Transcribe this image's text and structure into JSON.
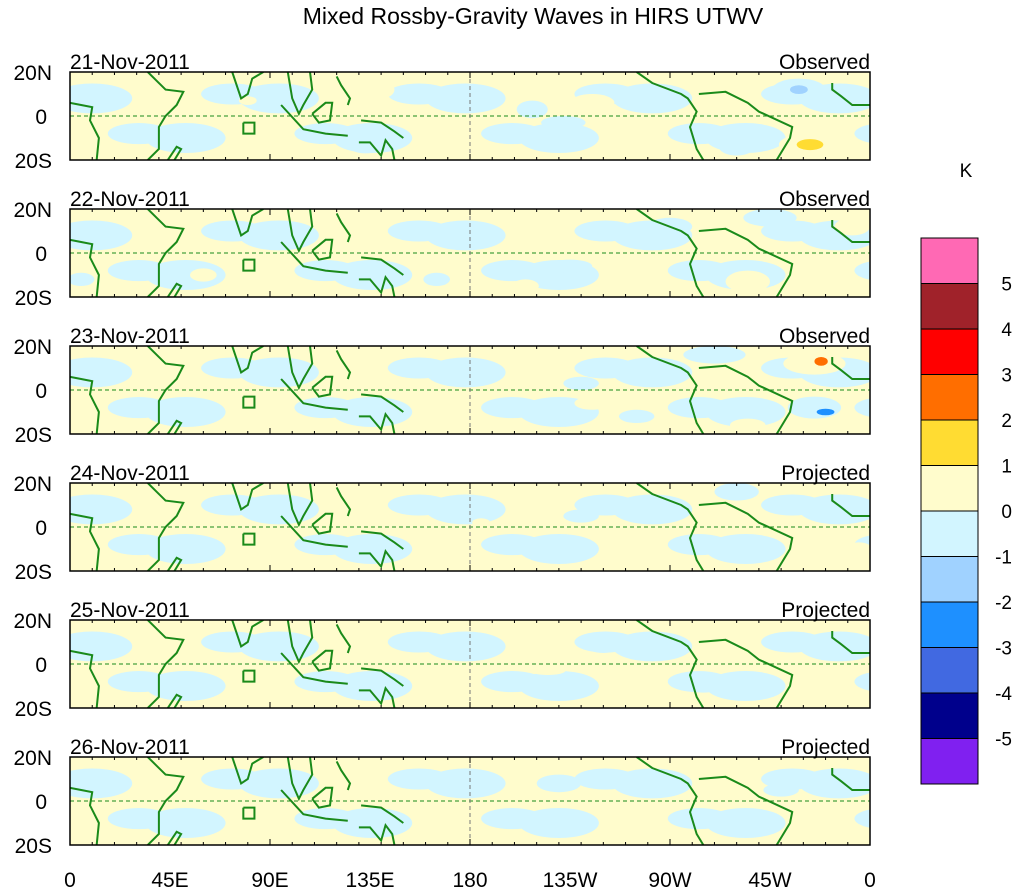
{
  "chart_data": {
    "type": "heatmap",
    "title": "Mixed Rossby-Gravity Waves in HIRS UTWV",
    "units": "K",
    "x_ticks": [
      "0",
      "45E",
      "90E",
      "135E",
      "180",
      "135W",
      "90W",
      "45W",
      "0"
    ],
    "x_tick_lons": [
      0,
      45,
      90,
      135,
      180,
      225,
      270,
      315,
      360
    ],
    "y_ticks": [
      "20N",
      "0",
      "20S"
    ],
    "lat_range": [
      -20,
      20
    ],
    "lon_range": [
      0,
      360
    ],
    "colorbar": {
      "levels": [
        "5",
        "4",
        "3",
        "2",
        "1",
        "0",
        "-1",
        "-2",
        "-3",
        "-4",
        "-5"
      ],
      "colors": [
        "#ff69b4",
        "#a0222a",
        "#ff0000",
        "#ff6e00",
        "#ffdc32",
        "#fffccc",
        "#d2f5ff",
        "#a0d2ff",
        "#1e90ff",
        "#4169e1",
        "#00008c",
        "#8020f0"
      ]
    },
    "panels": [
      {
        "date": "21-Nov-2011",
        "label": "Observed",
        "anomalies": [
          {
            "lon": 140,
            "lat": 12,
            "rlon": 6,
            "rlat": 4,
            "v": 0.5
          },
          {
            "lon": 80,
            "lat": 7,
            "rlon": 4,
            "rlat": 2,
            "v": 0.5
          },
          {
            "lon": 133,
            "lat": -13,
            "rlon": 8,
            "rlat": 4,
            "v": -0.5
          },
          {
            "lon": 208,
            "lat": 3,
            "rlon": 7,
            "rlat": 4,
            "v": -0.5
          },
          {
            "lon": 235,
            "lat": 6,
            "rlon": 10,
            "rlat": 4,
            "v": 0.5
          },
          {
            "lon": 222,
            "lat": -3,
            "rlon": 10,
            "rlat": 3,
            "v": -0.5
          },
          {
            "lon": 250,
            "lat": -16,
            "rlon": 10,
            "rlat": 3,
            "v": 0.5
          },
          {
            "lon": 328,
            "lat": 12,
            "rlon": 12,
            "rlat": 5,
            "v": -0.5
          },
          {
            "lon": 328,
            "lat": 12,
            "rlon": 4,
            "rlat": 2,
            "v": -1.5
          },
          {
            "lon": 333,
            "lat": -13,
            "rlon": 14,
            "rlat": 5,
            "v": 0.5
          },
          {
            "lon": 333,
            "lat": -13,
            "rlon": 6,
            "rlat": 2.5,
            "v": 1.5
          },
          {
            "lon": 300,
            "lat": -14,
            "rlon": 8,
            "rlat": 4,
            "v": -0.5
          }
        ]
      },
      {
        "date": "22-Nov-2011",
        "label": "Observed",
        "anomalies": [
          {
            "lon": 215,
            "lat": 5,
            "rlon": 9,
            "rlat": 3,
            "v": 0.5
          },
          {
            "lon": 225,
            "lat": -6,
            "rlon": 10,
            "rlat": 3,
            "v": -0.5
          },
          {
            "lon": 205,
            "lat": -15,
            "rlon": 6,
            "rlat": 3,
            "v": 0.5
          },
          {
            "lon": 165,
            "lat": -12,
            "rlon": 6,
            "rlat": 3,
            "v": -0.5
          },
          {
            "lon": 270,
            "lat": 12,
            "rlon": 10,
            "rlat": 4,
            "v": -0.5
          },
          {
            "lon": 260,
            "lat": -4,
            "rlon": 6,
            "rlat": 2,
            "v": 0.5
          },
          {
            "lon": 315,
            "lat": 16,
            "rlon": 12,
            "rlat": 4,
            "v": -0.5
          },
          {
            "lon": 305,
            "lat": -13,
            "rlon": 10,
            "rlat": 5,
            "v": 0.5
          },
          {
            "lon": 352,
            "lat": 12,
            "rlon": 8,
            "rlat": 4,
            "v": 0.5
          },
          {
            "lon": 5,
            "lat": -12,
            "rlon": 6,
            "rlat": 3,
            "v": -0.5
          },
          {
            "lon": 60,
            "lat": -10,
            "rlon": 6,
            "rlat": 3,
            "v": 0.5
          }
        ]
      },
      {
        "date": "23-Nov-2011",
        "label": "Observed",
        "anomalies": [
          {
            "lon": 200,
            "lat": 5,
            "rlon": 5,
            "rlat": 2,
            "v": 0.5
          },
          {
            "lon": 230,
            "lat": 3,
            "rlon": 8,
            "rlat": 3,
            "v": -0.5
          },
          {
            "lon": 235,
            "lat": -6,
            "rlon": 8,
            "rlat": 3,
            "v": 0.5
          },
          {
            "lon": 255,
            "lat": -12,
            "rlon": 8,
            "rlat": 3,
            "v": -0.5
          },
          {
            "lon": 290,
            "lat": 16,
            "rlon": 14,
            "rlat": 4,
            "v": -0.5
          },
          {
            "lon": 335,
            "lat": 12,
            "rlon": 14,
            "rlat": 5,
            "v": 0.5
          },
          {
            "lon": 338,
            "lat": 13,
            "rlon": 3,
            "rlat": 2,
            "v": 2.5
          },
          {
            "lon": 335,
            "lat": -8,
            "rlon": 12,
            "rlat": 5,
            "v": -0.5
          },
          {
            "lon": 340,
            "lat": -10,
            "rlon": 4,
            "rlat": 1.5,
            "v": -2.5
          },
          {
            "lon": 305,
            "lat": -16,
            "rlon": 8,
            "rlat": 3,
            "v": 0.5
          }
        ]
      },
      {
        "date": "24-Nov-2011",
        "label": "Projected",
        "anomalies": [
          {
            "lon": 185,
            "lat": 2,
            "rlon": 4,
            "rlat": 2,
            "v": 0.5
          },
          {
            "lon": 230,
            "lat": 5,
            "rlon": 8,
            "rlat": 3,
            "v": -0.5
          },
          {
            "lon": 250,
            "lat": -10,
            "rlon": 8,
            "rlat": 3,
            "v": 0.5
          },
          {
            "lon": 300,
            "lat": 16,
            "rlon": 10,
            "rlat": 4,
            "v": -0.5
          },
          {
            "lon": 355,
            "lat": -10,
            "rlon": 6,
            "rlat": 3,
            "v": 0.5
          },
          {
            "lon": 8,
            "lat": -14,
            "rlon": 6,
            "rlat": 3,
            "v": 0.5
          }
        ]
      },
      {
        "date": "25-Nov-2011",
        "label": "Projected",
        "anomalies": [
          {
            "lon": 215,
            "lat": -3,
            "rlon": 8,
            "rlat": 2,
            "v": 0.5
          },
          {
            "lon": 240,
            "lat": 7,
            "rlon": 6,
            "rlat": 2,
            "v": -0.5
          },
          {
            "lon": 340,
            "lat": -12,
            "rlon": 8,
            "rlat": 3,
            "v": 0.5
          },
          {
            "lon": 285,
            "lat": -10,
            "rlon": 8,
            "rlat": 3,
            "v": -0.5
          }
        ]
      },
      {
        "date": "26-Nov-2011",
        "label": "Projected",
        "anomalies": [
          {
            "lon": 220,
            "lat": 8,
            "rlon": 10,
            "rlat": 4,
            "v": -0.5
          },
          {
            "lon": 250,
            "lat": -8,
            "rlon": 10,
            "rlat": 4,
            "v": 0.5
          },
          {
            "lon": 320,
            "lat": 5,
            "rlon": 8,
            "rlat": 3,
            "v": -0.5
          }
        ]
      }
    ]
  }
}
